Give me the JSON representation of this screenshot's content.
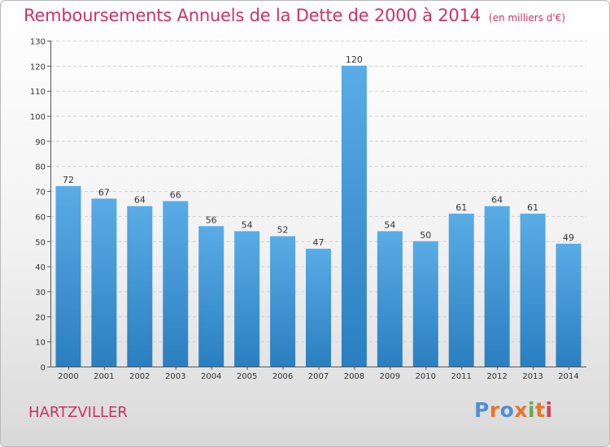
{
  "header": {
    "title": "Remboursements Annuels de la Dette de 2000 à 2014",
    "subtitle": "(en milliers d'€)"
  },
  "footer": {
    "commune": "HARTZVILLER",
    "logo": "Proxiti"
  },
  "colors": {
    "title": "#cc3366",
    "bar_light": "#5aace6",
    "bar_dark": "#2a7fc0",
    "logo": [
      "#4f8fd6",
      "#e8742a",
      "#4f8fd6",
      "#e8742a",
      "#6aa84f",
      "#e8742a",
      "#d63c5e"
    ]
  },
  "chart_data": {
    "type": "bar",
    "categories": [
      "2000",
      "2001",
      "2002",
      "2003",
      "2004",
      "2005",
      "2006",
      "2007",
      "2008",
      "2009",
      "2010",
      "2011",
      "2012",
      "2013",
      "2014"
    ],
    "values": [
      72,
      67,
      64,
      66,
      56,
      54,
      52,
      47,
      120,
      54,
      50,
      61,
      64,
      61,
      49
    ],
    "ylim": [
      0,
      130
    ],
    "yticks": [
      0,
      10,
      20,
      30,
      40,
      50,
      60,
      70,
      80,
      90,
      100,
      110,
      120,
      130
    ],
    "grid": true,
    "xlabel": "",
    "ylabel": ""
  }
}
